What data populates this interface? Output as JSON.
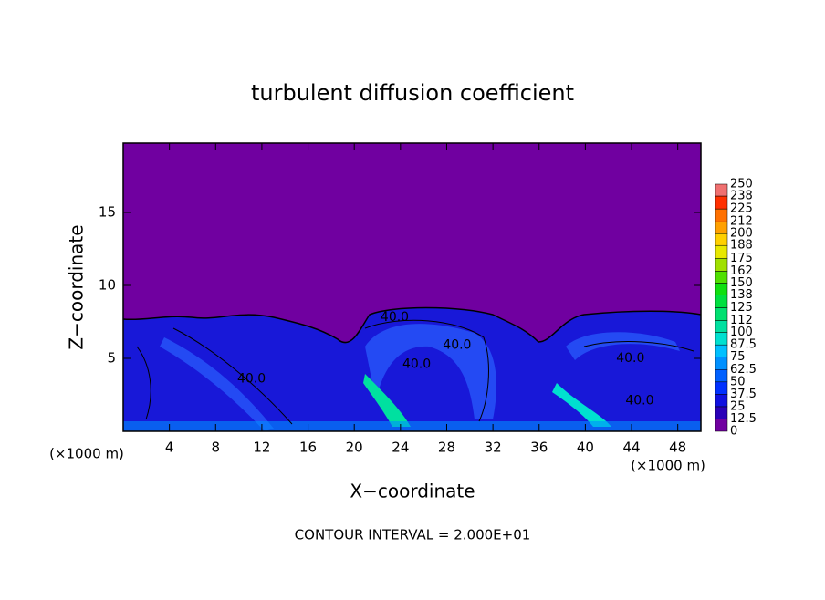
{
  "chart_data": {
    "type": "contour",
    "title": "turbulent diffusion coefficient",
    "xlabel": "X−coordinate",
    "ylabel": "Z−coordinate",
    "y_unit_label": "(×1000 m)",
    "x_unit_label": "(×1000 m)",
    "footer": "CONTOUR INTERVAL = 2.000E+01",
    "xlim": [
      0,
      50
    ],
    "ylim": [
      0,
      19.75
    ],
    "xticks": [
      4,
      8,
      12,
      16,
      20,
      24,
      28,
      32,
      36,
      40,
      44,
      48
    ],
    "yticks": [
      5,
      10,
      15
    ],
    "contour_labels": [
      {
        "text": "40.0",
        "x": 23.5,
        "y": 7.8
      },
      {
        "text": "40.0",
        "x": 28.9,
        "y": 5.9
      },
      {
        "text": "40.0",
        "x": 25.4,
        "y": 4.6
      },
      {
        "text": "40.0",
        "x": 11.1,
        "y": 3.6
      },
      {
        "text": "40.0",
        "x": 43.9,
        "y": 5.0
      },
      {
        "text": "40.0",
        "x": 44.7,
        "y": 2.1
      }
    ],
    "colorbar": {
      "levels": [
        0,
        12.5,
        25,
        37.5,
        50,
        62.5,
        75,
        87.5,
        100,
        112,
        125,
        138,
        150,
        162,
        175,
        188,
        200,
        212,
        225,
        238,
        250
      ],
      "colors": [
        "#7000a0",
        "#2a00b8",
        "#1010e0",
        "#0030ff",
        "#0060ff",
        "#0090ff",
        "#00c0ff",
        "#00e0d0",
        "#00e0a0",
        "#00e070",
        "#00e040",
        "#10e010",
        "#50e000",
        "#a0e000",
        "#e8e800",
        "#ffd000",
        "#ffa000",
        "#ff7000",
        "#ff3000",
        "#f07070"
      ]
    }
  }
}
